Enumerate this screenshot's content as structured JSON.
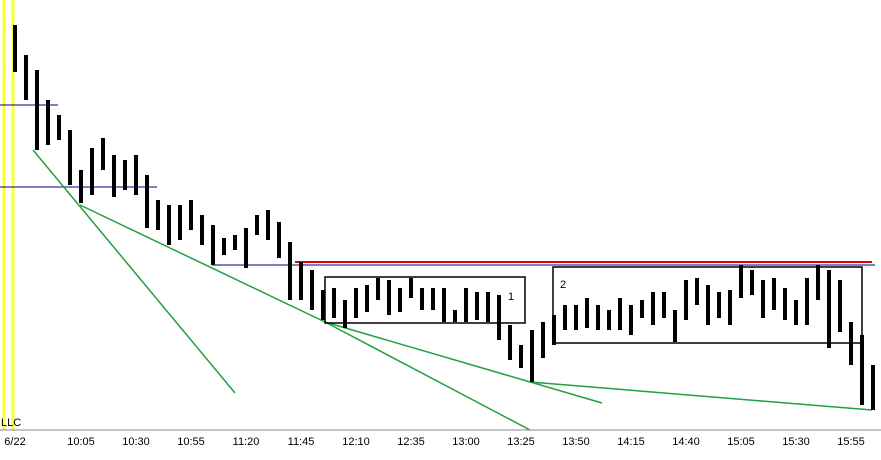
{
  "chart_data": {
    "type": "range-bar",
    "categories": [
      "6/22",
      null,
      null,
      null,
      null,
      null,
      "10:05",
      null,
      null,
      null,
      null,
      "10:30",
      null,
      null,
      null,
      null,
      "10:55",
      null,
      null,
      null,
      null,
      "11:20",
      null,
      null,
      null,
      null,
      "11:45",
      null,
      null,
      null,
      null,
      "12:10",
      null,
      null,
      null,
      null,
      "12:35",
      null,
      null,
      null,
      null,
      "13:00",
      null,
      null,
      null,
      null,
      "13:25",
      null,
      null,
      null,
      null,
      "13:50",
      null,
      null,
      null,
      null,
      "14:15",
      null,
      null,
      null,
      null,
      "14:40",
      null,
      null,
      null,
      null,
      "15:05",
      null,
      null,
      null,
      null,
      "15:30",
      null,
      null,
      null,
      null,
      "15:55",
      null,
      null
    ],
    "high": [
      395,
      365,
      350,
      320,
      305,
      290,
      250,
      272,
      282,
      265,
      260,
      265,
      245,
      220,
      215,
      215,
      220,
      205,
      195,
      182,
      185,
      192,
      205,
      210,
      198,
      178,
      158,
      150,
      130,
      132,
      120,
      132,
      135,
      142,
      140,
      132,
      142,
      132,
      132,
      132,
      110,
      132,
      128,
      128,
      125,
      95,
      75,
      90,
      98,
      105,
      115,
      115,
      122,
      115,
      110,
      122,
      115,
      120,
      128,
      128,
      110,
      140,
      142,
      135,
      128,
      130,
      155,
      150,
      140,
      142,
      132,
      120,
      142,
      155,
      150,
      140,
      98,
      85,
      55
    ],
    "low": [
      348,
      320,
      270,
      275,
      280,
      235,
      217,
      225,
      250,
      223,
      230,
      225,
      192,
      190,
      175,
      180,
      190,
      175,
      155,
      165,
      170,
      152,
      185,
      180,
      162,
      120,
      120,
      110,
      100,
      102,
      92,
      102,
      108,
      120,
      105,
      108,
      122,
      110,
      110,
      98,
      98,
      98,
      100,
      98,
      80,
      60,
      52,
      38,
      62,
      75,
      90,
      90,
      92,
      90,
      90,
      90,
      85,
      102,
      95,
      102,
      78,
      100,
      115,
      95,
      102,
      95,
      122,
      125,
      102,
      110,
      100,
      95,
      95,
      120,
      72,
      88,
      55,
      15,
      10
    ],
    "color": "#000000",
    "ylim": [
      0,
      420
    ],
    "annotations": [
      "LLC",
      "1",
      "2"
    ]
  }
}
